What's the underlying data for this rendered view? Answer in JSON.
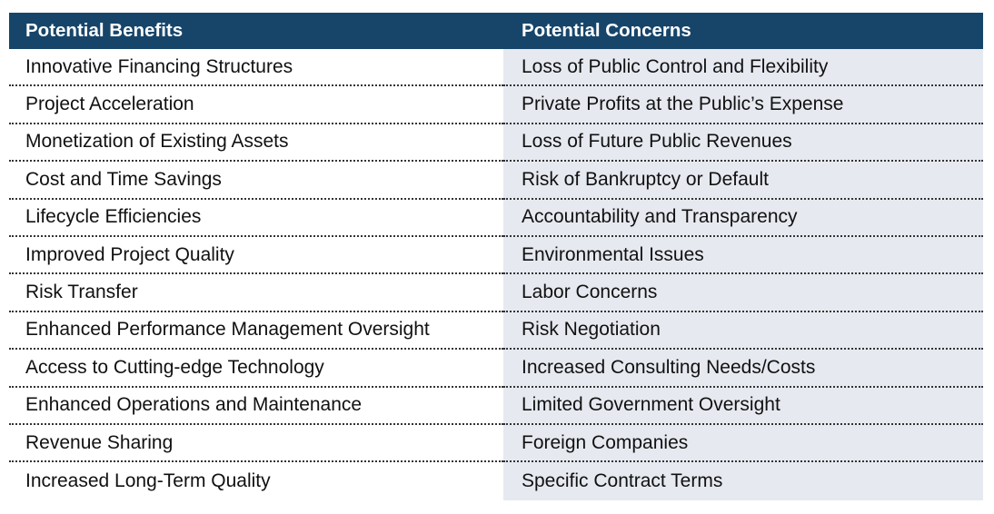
{
  "table": {
    "headers": {
      "benefits": "Potential Benefits",
      "concerns": "Potential Concerns"
    },
    "rows": [
      {
        "benefit": "Innovative Financing Structures",
        "concern": "Loss of Public Control and Flexibility"
      },
      {
        "benefit": "Project Acceleration",
        "concern": "Private Profits at the Public’s Expense"
      },
      {
        "benefit": "Monetization of Existing Assets",
        "concern": "Loss of Future Public Revenues"
      },
      {
        "benefit": "Cost and Time Savings",
        "concern": "Risk of Bankruptcy or Default"
      },
      {
        "benefit": "Lifecycle Efficiencies",
        "concern": "Accountability and Transparency"
      },
      {
        "benefit": "Improved Project Quality",
        "concern": "Environmental Issues"
      },
      {
        "benefit": "Risk Transfer",
        "concern": "Labor Concerns"
      },
      {
        "benefit": "Enhanced Performance Management Oversight",
        "concern": "Risk Negotiation"
      },
      {
        "benefit": "Access to Cutting-edge Technology",
        "concern": "Increased Consulting Needs/Costs"
      },
      {
        "benefit": "Enhanced Operations and Maintenance",
        "concern": "Limited Government Oversight"
      },
      {
        "benefit": "Revenue Sharing",
        "concern": "Foreign Companies"
      },
      {
        "benefit": "Increased Long-Term Quality",
        "concern": "Specific Contract Terms"
      }
    ]
  }
}
